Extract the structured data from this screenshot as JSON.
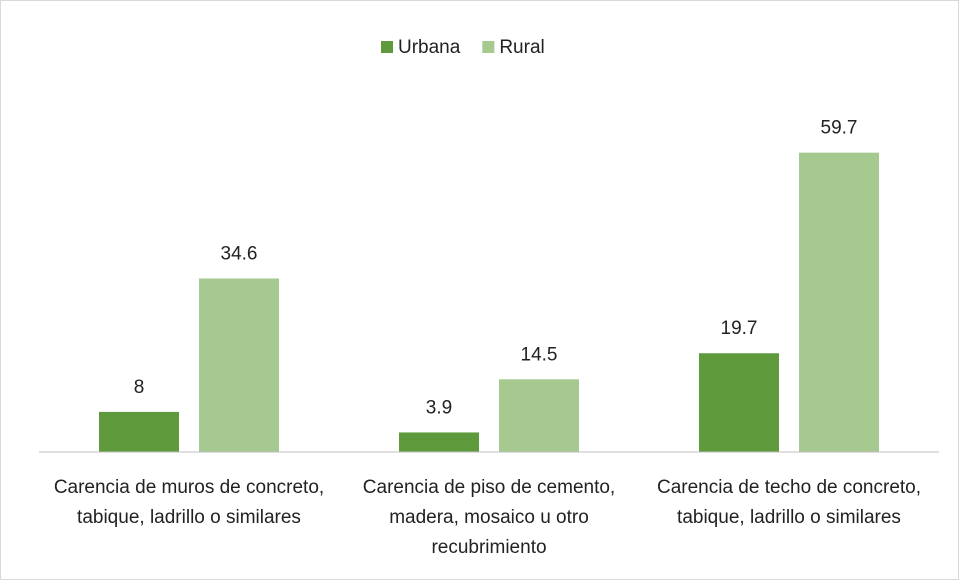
{
  "chart_data": {
    "type": "bar",
    "categories": [
      "Carencia de muros de concreto, tabique, ladrillo o similares",
      "Carencia de piso de cemento, madera, mosaico u otro recubrimiento",
      "Carencia de techo de concreto, tabique, ladrillo o similares"
    ],
    "series": [
      {
        "name": "Urbana",
        "color": "#5e9a3c",
        "values": [
          8,
          3.9,
          19.7
        ]
      },
      {
        "name": "Rural",
        "color": "#a5c98f",
        "values": [
          34.6,
          14.5,
          59.7
        ]
      }
    ],
    "ylim": [
      0,
      70
    ],
    "legend": "top"
  }
}
